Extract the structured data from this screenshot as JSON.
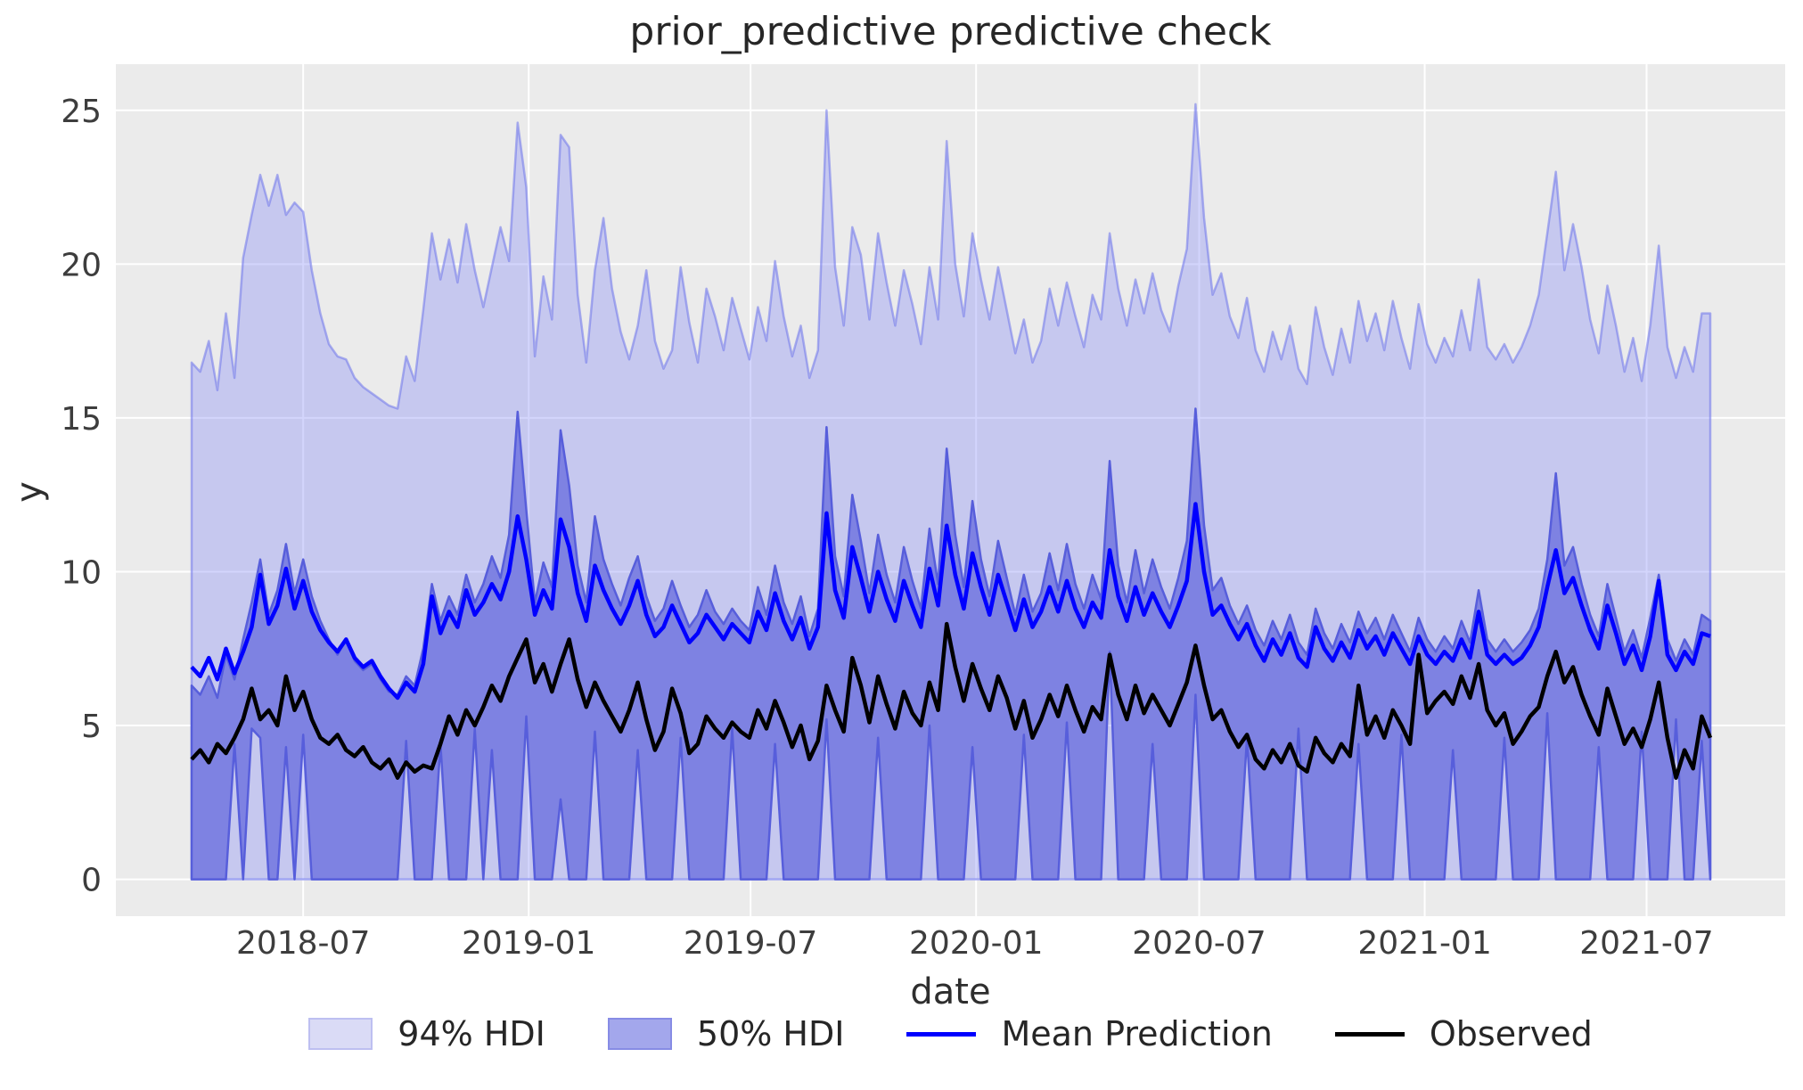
{
  "chart_data": {
    "type": "area",
    "title": "prior_predictive predictive check",
    "xlabel": "date",
    "ylabel": "y",
    "x_start_date": "2018-04-01",
    "x_step_days": 7,
    "n_points": 178,
    "ylim": [
      -1.2,
      26.5
    ],
    "grid": true,
    "legend_position": "bottom",
    "y_ticks": [
      0,
      5,
      10,
      15,
      20,
      25
    ],
    "x_ticks": [
      {
        "label": "2018-07",
        "day": 91
      },
      {
        "label": "2019-01",
        "day": 275
      },
      {
        "label": "2019-07",
        "day": 456
      },
      {
        "label": "2020-01",
        "day": 640
      },
      {
        "label": "2020-07",
        "day": 822
      },
      {
        "label": "2021-01",
        "day": 1006
      },
      {
        "label": "2021-07",
        "day": 1187
      }
    ],
    "series": [
      {
        "name": "94% HDI upper",
        "role": "band_upper_94",
        "values": [
          16.8,
          16.5,
          17.5,
          15.9,
          18.4,
          16.3,
          20.2,
          21.6,
          22.9,
          21.9,
          22.9,
          21.6,
          22.0,
          21.7,
          19.8,
          18.4,
          17.4,
          17.0,
          16.9,
          16.3,
          16.0,
          15.8,
          15.6,
          15.4,
          15.3,
          17.0,
          16.2,
          18.5,
          21.0,
          19.5,
          20.8,
          19.4,
          21.3,
          19.8,
          18.6,
          19.9,
          21.2,
          20.1,
          24.6,
          22.5,
          17.0,
          19.6,
          18.2,
          24.2,
          23.8,
          19.0,
          16.8,
          19.8,
          21.5,
          19.2,
          17.8,
          16.9,
          18.0,
          19.8,
          17.5,
          16.6,
          17.2,
          19.9,
          18.1,
          16.8,
          19.2,
          18.3,
          17.2,
          18.9,
          17.9,
          16.9,
          18.6,
          17.5,
          20.1,
          18.3,
          17.0,
          18.0,
          16.3,
          17.2,
          25.0,
          19.9,
          18.0,
          21.2,
          20.3,
          18.2,
          21.0,
          19.4,
          18.0,
          19.8,
          18.7,
          17.4,
          19.9,
          18.2,
          24.0,
          20.0,
          18.3,
          21.0,
          19.5,
          18.2,
          19.9,
          18.5,
          17.1,
          18.2,
          16.8,
          17.5,
          19.2,
          18.0,
          19.4,
          18.3,
          17.3,
          19.0,
          18.2,
          21.0,
          19.2,
          18.0,
          19.5,
          18.4,
          19.7,
          18.5,
          17.8,
          19.3,
          20.5,
          25.2,
          21.5,
          19.0,
          19.7,
          18.3,
          17.6,
          18.9,
          17.2,
          16.5,
          17.8,
          16.9,
          18.0,
          16.6,
          16.1,
          18.6,
          17.3,
          16.4,
          17.9,
          16.8,
          18.8,
          17.5,
          18.4,
          17.2,
          18.8,
          17.6,
          16.6,
          18.7,
          17.4,
          16.8,
          17.6,
          17.0,
          18.5,
          17.2,
          19.5,
          17.3,
          16.9,
          17.4,
          16.8,
          17.3,
          18.0,
          19.0,
          21.0,
          23.0,
          19.8,
          21.3,
          19.9,
          18.2,
          17.1,
          19.3,
          18.0,
          16.5,
          17.6,
          16.2,
          18.0,
          20.6,
          17.3,
          16.3,
          17.3,
          16.5,
          18.4,
          18.4
        ]
      },
      {
        "name": "50% HDI upper",
        "role": "band_upper_50",
        "values": [
          6.3,
          6.0,
          6.6,
          5.9,
          7.3,
          6.5,
          7.8,
          9.0,
          10.4,
          8.6,
          9.4,
          10.9,
          9.3,
          10.4,
          9.2,
          8.4,
          7.8,
          7.3,
          7.8,
          7.1,
          6.8,
          7.0,
          6.5,
          6.1,
          6.0,
          6.6,
          6.3,
          7.5,
          9.6,
          8.4,
          9.2,
          8.6,
          9.9,
          9.0,
          9.6,
          10.5,
          9.8,
          11.2,
          15.2,
          12.0,
          9.0,
          10.3,
          9.5,
          14.6,
          12.8,
          10.2,
          9.0,
          11.8,
          10.4,
          9.6,
          8.9,
          9.8,
          10.5,
          9.2,
          8.4,
          8.8,
          9.7,
          8.9,
          8.2,
          8.6,
          9.4,
          8.7,
          8.3,
          8.8,
          8.4,
          8.1,
          9.5,
          8.6,
          10.2,
          9.0,
          8.3,
          9.2,
          7.9,
          8.8,
          14.7,
          10.5,
          9.2,
          12.5,
          11.0,
          9.3,
          11.2,
          9.9,
          9.0,
          10.8,
          9.7,
          8.8,
          11.4,
          9.6,
          14.0,
          11.2,
          9.5,
          12.3,
          10.4,
          9.2,
          11.0,
          9.8,
          8.6,
          9.9,
          8.7,
          9.3,
          10.6,
          9.4,
          10.9,
          9.6,
          8.8,
          9.9,
          9.1,
          13.6,
          10.2,
          9.0,
          10.7,
          9.3,
          10.4,
          9.5,
          8.8,
          9.8,
          11.0,
          15.3,
          11.5,
          9.4,
          9.8,
          8.9,
          8.3,
          8.9,
          8.1,
          7.6,
          8.4,
          7.8,
          8.6,
          7.7,
          7.3,
          8.8,
          8.0,
          7.5,
          8.3,
          7.7,
          8.7,
          8.0,
          8.5,
          7.8,
          8.6,
          8.0,
          7.4,
          8.5,
          7.8,
          7.4,
          7.9,
          7.5,
          8.4,
          7.7,
          9.4,
          7.8,
          7.4,
          7.8,
          7.4,
          7.7,
          8.1,
          8.8,
          10.4,
          13.2,
          10.2,
          10.8,
          9.6,
          8.6,
          7.9,
          9.6,
          8.5,
          7.4,
          8.1,
          7.2,
          8.5,
          9.9,
          7.8,
          7.1,
          7.8,
          7.3,
          8.6,
          8.4
        ]
      },
      {
        "name": "50% HDI lower",
        "role": "band_lower_50",
        "baseline": 0,
        "spikes": [
          [
            5,
            4.4
          ],
          [
            7,
            4.9
          ],
          [
            8,
            4.6
          ],
          [
            11,
            4.3
          ],
          [
            13,
            4.7
          ],
          [
            25,
            4.5
          ],
          [
            29,
            4.4
          ],
          [
            33,
            4.9
          ],
          [
            35,
            4.2
          ],
          [
            39,
            5.3
          ],
          [
            43,
            2.6
          ],
          [
            47,
            4.8
          ],
          [
            52,
            4.2
          ],
          [
            57,
            4.6
          ],
          [
            63,
            4.9
          ],
          [
            68,
            4.4
          ],
          [
            74,
            5.2
          ],
          [
            80,
            4.6
          ],
          [
            86,
            5.0
          ],
          [
            91,
            4.3
          ],
          [
            97,
            4.7
          ],
          [
            102,
            5.1
          ],
          [
            107,
            7.4
          ],
          [
            112,
            4.4
          ],
          [
            117,
            6.0
          ],
          [
            123,
            4.6
          ],
          [
            129,
            4.9
          ],
          [
            136,
            4.4
          ],
          [
            141,
            4.7
          ],
          [
            147,
            4.2
          ],
          [
            153,
            4.6
          ],
          [
            158,
            5.4
          ],
          [
            164,
            4.3
          ],
          [
            169,
            4.8
          ],
          [
            173,
            5.2
          ],
          [
            176,
            4.5
          ]
        ]
      },
      {
        "name": "Mean Prediction",
        "role": "mean",
        "color": "#0000ff",
        "values": [
          6.9,
          6.6,
          7.2,
          6.5,
          7.5,
          6.7,
          7.4,
          8.2,
          9.9,
          8.3,
          8.9,
          10.1,
          8.8,
          9.7,
          8.7,
          8.1,
          7.7,
          7.4,
          7.8,
          7.2,
          6.9,
          7.1,
          6.6,
          6.2,
          5.9,
          6.4,
          6.1,
          7.0,
          9.2,
          8.0,
          8.7,
          8.2,
          9.4,
          8.6,
          9.0,
          9.6,
          9.1,
          10.0,
          11.8,
          10.4,
          8.6,
          9.4,
          8.8,
          11.7,
          10.8,
          9.3,
          8.4,
          10.2,
          9.4,
          8.8,
          8.3,
          8.9,
          9.7,
          8.6,
          7.9,
          8.2,
          8.9,
          8.3,
          7.7,
          8.0,
          8.6,
          8.2,
          7.8,
          8.3,
          8.0,
          7.7,
          8.7,
          8.1,
          9.3,
          8.4,
          7.8,
          8.5,
          7.5,
          8.2,
          11.9,
          9.4,
          8.5,
          10.8,
          9.8,
          8.7,
          10.0,
          9.1,
          8.4,
          9.7,
          8.9,
          8.2,
          10.1,
          8.9,
          11.5,
          9.9,
          8.8,
          10.6,
          9.5,
          8.6,
          9.9,
          9.0,
          8.1,
          9.1,
          8.2,
          8.7,
          9.5,
          8.7,
          9.7,
          8.8,
          8.2,
          9.0,
          8.5,
          10.7,
          9.2,
          8.4,
          9.5,
          8.6,
          9.3,
          8.7,
          8.2,
          8.9,
          9.7,
          12.2,
          10.0,
          8.6,
          8.9,
          8.3,
          7.8,
          8.3,
          7.6,
          7.1,
          7.8,
          7.3,
          8.0,
          7.2,
          6.9,
          8.2,
          7.5,
          7.1,
          7.7,
          7.2,
          8.1,
          7.5,
          7.9,
          7.3,
          8.0,
          7.5,
          7.0,
          7.9,
          7.3,
          7.0,
          7.4,
          7.1,
          7.8,
          7.2,
          8.7,
          7.3,
          7.0,
          7.3,
          7.0,
          7.2,
          7.6,
          8.2,
          9.5,
          10.7,
          9.3,
          9.8,
          8.9,
          8.1,
          7.5,
          8.9,
          8.0,
          7.0,
          7.6,
          6.8,
          7.9,
          9.7,
          7.3,
          6.8,
          7.4,
          7.0,
          8.0,
          7.9
        ]
      },
      {
        "name": "Observed",
        "role": "observed",
        "color": "#000000",
        "values": [
          3.9,
          4.2,
          3.8,
          4.4,
          4.1,
          4.6,
          5.2,
          6.2,
          5.2,
          5.5,
          5.0,
          6.6,
          5.5,
          6.1,
          5.2,
          4.6,
          4.4,
          4.7,
          4.2,
          4.0,
          4.3,
          3.8,
          3.6,
          3.9,
          3.3,
          3.8,
          3.5,
          3.7,
          3.6,
          4.4,
          5.3,
          4.7,
          5.5,
          5.0,
          5.6,
          6.3,
          5.8,
          6.6,
          7.2,
          7.8,
          6.4,
          7.0,
          6.1,
          7.0,
          7.8,
          6.5,
          5.6,
          6.4,
          5.8,
          5.3,
          4.8,
          5.5,
          6.4,
          5.2,
          4.2,
          4.8,
          6.2,
          5.4,
          4.1,
          4.4,
          5.3,
          4.9,
          4.6,
          5.1,
          4.8,
          4.6,
          5.5,
          4.9,
          5.8,
          5.1,
          4.3,
          5.0,
          3.9,
          4.5,
          6.3,
          5.5,
          4.8,
          7.2,
          6.3,
          5.1,
          6.6,
          5.7,
          4.9,
          6.1,
          5.4,
          5.0,
          6.4,
          5.5,
          8.3,
          6.9,
          5.8,
          7.0,
          6.2,
          5.5,
          6.6,
          5.9,
          4.9,
          5.8,
          4.6,
          5.2,
          6.0,
          5.3,
          6.3,
          5.5,
          4.8,
          5.6,
          5.2,
          7.3,
          6.0,
          5.2,
          6.3,
          5.4,
          6.0,
          5.5,
          5.0,
          5.7,
          6.4,
          7.6,
          6.3,
          5.2,
          5.5,
          4.8,
          4.3,
          4.7,
          3.9,
          3.6,
          4.2,
          3.8,
          4.4,
          3.7,
          3.5,
          4.6,
          4.1,
          3.8,
          4.4,
          4.0,
          6.3,
          4.7,
          5.3,
          4.6,
          5.5,
          5.0,
          4.4,
          7.3,
          5.4,
          5.8,
          6.1,
          5.7,
          6.6,
          5.9,
          7.0,
          5.5,
          5.0,
          5.4,
          4.4,
          4.8,
          5.3,
          5.6,
          6.6,
          7.4,
          6.4,
          6.9,
          6.0,
          5.3,
          4.7,
          6.2,
          5.3,
          4.4,
          4.9,
          4.3,
          5.2,
          6.4,
          4.6,
          3.3,
          4.2,
          3.6,
          5.3,
          4.6
        ]
      }
    ],
    "hdi94_lower_baseline": 0
  },
  "legend": {
    "items": [
      {
        "label": "94% HDI",
        "marker": "patch",
        "fill": "#dadbf6",
        "edge": "#bdbff1"
      },
      {
        "label": "50% HDI",
        "marker": "patch",
        "fill": "#a3a7ec",
        "edge": "#878ce5"
      },
      {
        "label": "Mean Prediction",
        "marker": "line",
        "color": "#0000ff"
      },
      {
        "label": "Observed",
        "marker": "line",
        "color": "#000000"
      }
    ]
  },
  "colors": {
    "plot_background": "#ebebeb",
    "gridline": "#ffffff",
    "band94_fill": "rgba(129,135,246,0.35)",
    "band94_edge": "rgba(110,116,235,0.55)",
    "band50_fill": "#7e82e2",
    "band50_edge": "#575edb",
    "mean_line": "#0000ff",
    "observed_line": "#000000",
    "tick_label": "#3d3d3d"
  }
}
